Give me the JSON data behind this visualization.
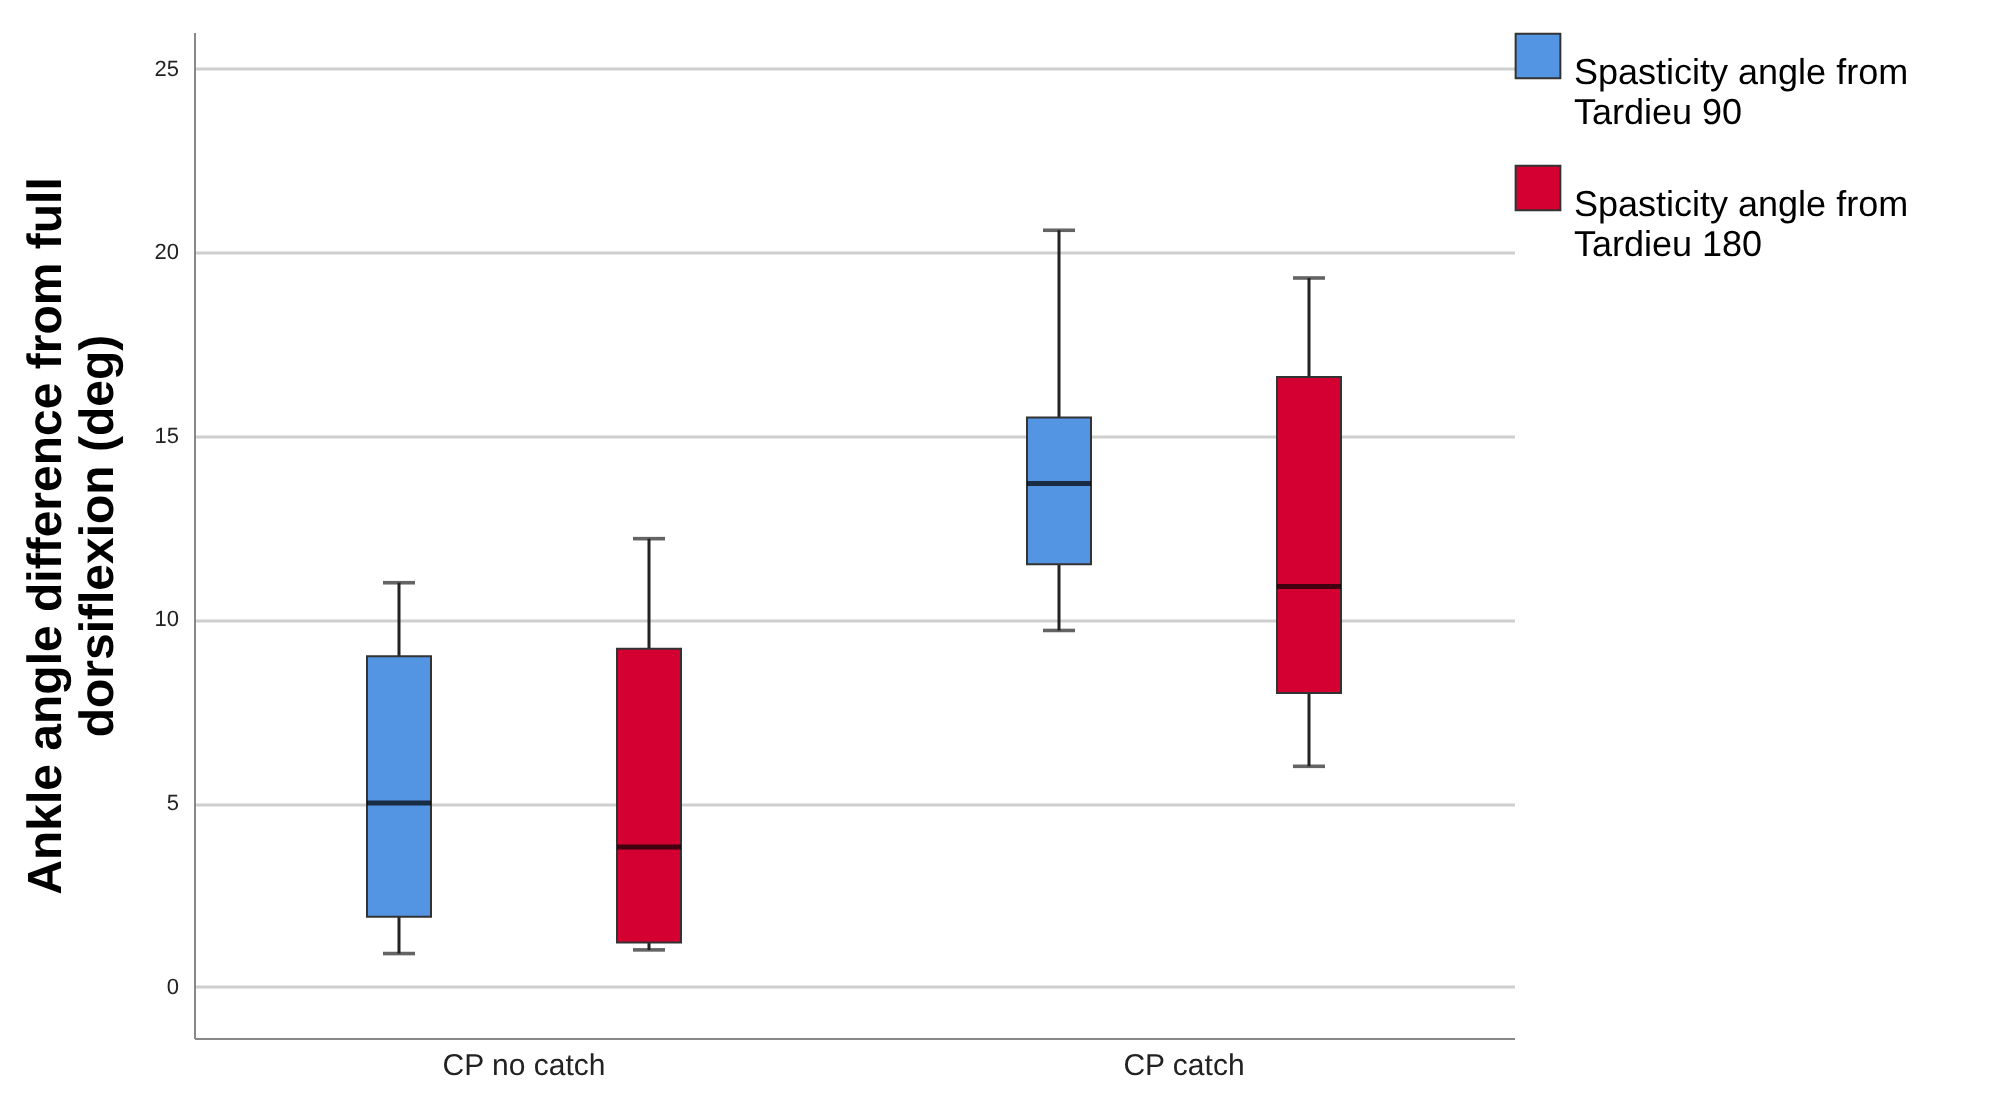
{
  "chart_data": {
    "type": "box",
    "ylabel": "Ankle angle difference from full dorsiflexion (deg)",
    "categories": [
      "CP no catch",
      "CP catch"
    ],
    "series": [
      {
        "name": "Spasticity angle from Tardieu 90",
        "color": "#5394e3",
        "boxes": [
          {
            "low": 0.9,
            "q1": 1.9,
            "median": 5.0,
            "q3": 9.0,
            "high": 11.0
          },
          {
            "low": 9.7,
            "q1": 11.5,
            "median": 13.7,
            "q3": 15.5,
            "high": 20.6
          }
        ]
      },
      {
        "name": "Spasticity angle from Tardieu 180",
        "color": "#d50032",
        "boxes": [
          {
            "low": 1.0,
            "q1": 1.2,
            "median": 3.8,
            "q3": 9.2,
            "high": 12.2
          },
          {
            "low": 6.0,
            "q1": 8.0,
            "median": 10.9,
            "q3": 16.6,
            "high": 19.3
          }
        ]
      }
    ],
    "ylim": [
      -1.4,
      26
    ],
    "yticks": [
      0,
      5,
      10,
      15,
      20,
      25
    ],
    "grid": "y",
    "legend": "top right"
  }
}
